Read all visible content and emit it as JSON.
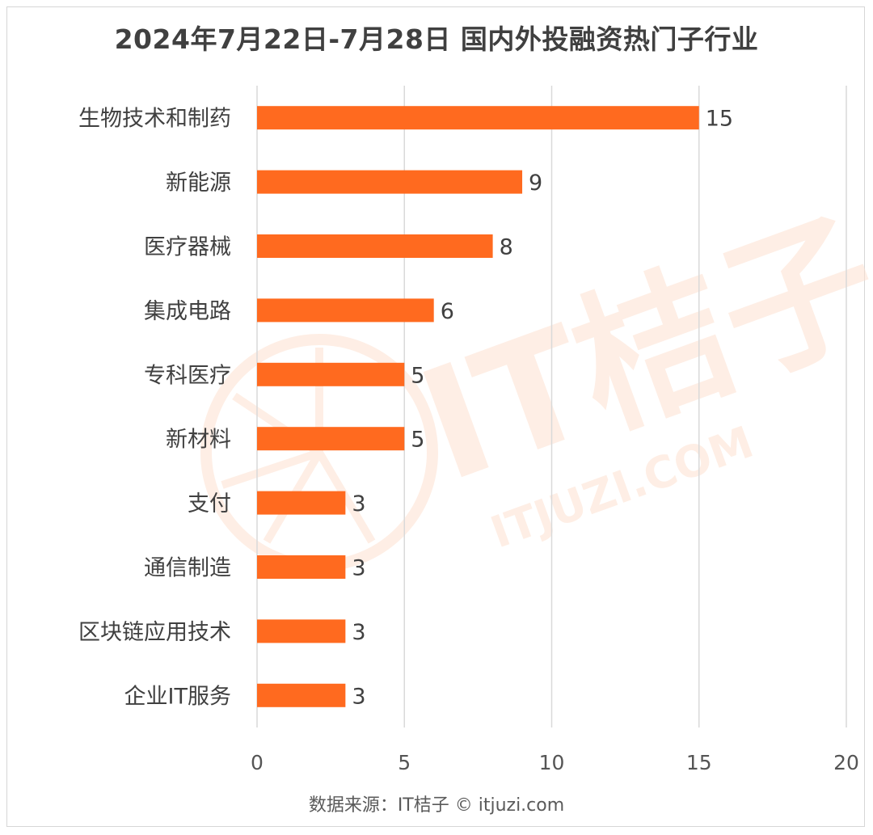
{
  "page": {
    "title": "2024年7月22日-7月28日 国内外投融资热门子行业",
    "source": "数据来源：IT桔子 © itjuzi.com",
    "watermark": {
      "brand": "IT桔子",
      "url": "ITJUZI.COM"
    }
  },
  "colors": {
    "bar": "#ff6a1f",
    "grid": "#d9d9d9",
    "text": "#404040",
    "watermark": "#fde6d8"
  },
  "chart_data": {
    "type": "bar",
    "orientation": "horizontal",
    "categories": [
      "生物技术和制药",
      "新能源",
      "医疗器械",
      "集成电路",
      "专科医疗",
      "新材料",
      "支付",
      "通信制造",
      "区块链应用技术",
      "企业IT服务"
    ],
    "values": [
      15,
      9,
      8,
      6,
      5,
      5,
      3,
      3,
      3,
      3
    ],
    "xlim": [
      0,
      20
    ],
    "xticks": [
      0,
      5,
      10,
      15,
      20
    ],
    "grid": true,
    "legend": "none",
    "data_labels": true
  }
}
